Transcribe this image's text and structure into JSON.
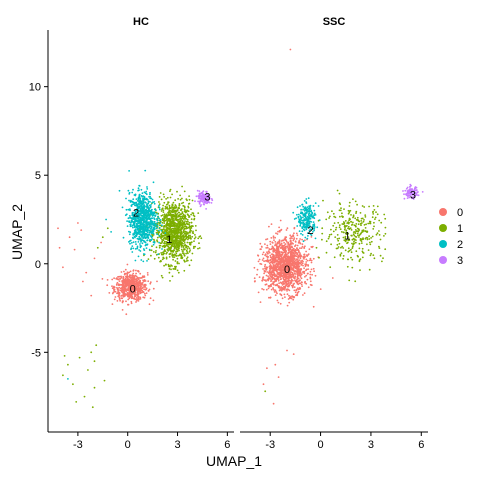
{
  "chart_data": {
    "type": "scatter",
    "xlabel": "UMAP_1",
    "ylabel": "UMAP_2",
    "xlim": [
      -4.8,
      6.4
    ],
    "ylim": [
      -9.5,
      13.2
    ],
    "x_ticks": [
      -3,
      0,
      3,
      6
    ],
    "y_ticks": [
      -5,
      0,
      5,
      10
    ],
    "grid": false,
    "legend_position": "right",
    "series": [
      {
        "name": "0",
        "color": "#F8766D"
      },
      {
        "name": "1",
        "color": "#7CAE00"
      },
      {
        "name": "2",
        "color": "#00BFC4"
      },
      {
        "name": "3",
        "color": "#C77CFF"
      }
    ],
    "facets": [
      {
        "title": "HC",
        "clusters": [
          {
            "cluster": "0",
            "center": [
              0.2,
              -1.3
            ],
            "spread": [
              0.9,
              0.7
            ],
            "count": 650,
            "label_pos": [
              0.3,
              -1.4
            ]
          },
          {
            "cluster": "1",
            "center": [
              2.8,
              1.8
            ],
            "spread": [
              1.0,
              1.6
            ],
            "count": 1100,
            "label_pos": [
              2.5,
              1.4
            ]
          },
          {
            "cluster": "2",
            "center": [
              0.9,
              2.5
            ],
            "spread": [
              0.75,
              1.4
            ],
            "count": 850,
            "label_pos": [
              0.5,
              2.9
            ]
          },
          {
            "cluster": "3",
            "center": [
              4.6,
              3.7
            ],
            "spread": [
              0.35,
              0.35
            ],
            "count": 140,
            "label_pos": [
              4.8,
              3.8
            ]
          }
        ],
        "outliers": [
          {
            "cluster": "0",
            "points": [
              [
                -3.5,
                1.5
              ],
              [
                -3.2,
                0.8
              ],
              [
                -2.8,
                1.9
              ],
              [
                -2.5,
                -0.5
              ],
              [
                -2.0,
                0.3
              ],
              [
                -3.9,
                -0.2
              ],
              [
                -4.1,
                0.9
              ],
              [
                -2.2,
                -1.8
              ],
              [
                -1.6,
                1.2
              ],
              [
                -3.0,
                2.3
              ],
              [
                -2.7,
                -1.0
              ],
              [
                -4.2,
                2.0
              ]
            ]
          },
          {
            "cluster": "1",
            "points": [
              [
                -2.2,
                -5.0
              ],
              [
                -2.0,
                -5.5
              ],
              [
                -2.4,
                -6.0
              ],
              [
                -3.6,
                -5.7
              ],
              [
                -3.9,
                -6.3
              ],
              [
                -3.3,
                -6.8
              ],
              [
                -2.6,
                -7.5
              ],
              [
                -2.1,
                -8.1
              ],
              [
                -3.1,
                -7.8
              ],
              [
                -1.4,
                -6.6
              ],
              [
                -1.9,
                -4.6
              ],
              [
                -3.8,
                -5.2
              ],
              [
                -2.9,
                -5.3
              ],
              [
                -2.0,
                -7.0
              ],
              [
                -1.5,
                1.5
              ],
              [
                -1.8,
                0.9
              ],
              [
                -1.2,
                2.0
              ]
            ]
          },
          {
            "cluster": "2",
            "points": [
              [
                -3.6,
                -6.5
              ],
              [
                -1.3,
                2.5
              ],
              [
                -1.0,
                1.8
              ]
            ]
          }
        ]
      },
      {
        "title": "SSC",
        "clusters": [
          {
            "cluster": "0",
            "center": [
              -2.1,
              -0.1
            ],
            "spread": [
              1.2,
              1.4
            ],
            "count": 1400,
            "label_pos": [
              -2.0,
              -0.3
            ]
          },
          {
            "cluster": "1",
            "center": [
              2.0,
              1.8
            ],
            "spread": [
              1.6,
              1.5
            ],
            "count": 300,
            "label_pos": [
              1.6,
              1.6
            ]
          },
          {
            "cluster": "2",
            "center": [
              -0.8,
              2.5
            ],
            "spread": [
              0.5,
              0.8
            ],
            "count": 230,
            "label_pos": [
              -0.6,
              1.9
            ]
          },
          {
            "cluster": "3",
            "center": [
              5.4,
              4.0
            ],
            "spread": [
              0.35,
              0.3
            ],
            "count": 110,
            "label_pos": [
              5.5,
              3.9
            ]
          }
        ],
        "outliers": [
          {
            "cluster": "0",
            "points": [
              [
                -1.8,
                12.1
              ],
              [
                -2.0,
                -4.9
              ],
              [
                -1.6,
                -5.1
              ],
              [
                -2.7,
                -5.7
              ],
              [
                -3.2,
                -5.9
              ],
              [
                -2.5,
                -6.4
              ],
              [
                -2.8,
                -7.9
              ],
              [
                -3.4,
                -6.8
              ]
            ]
          },
          {
            "cluster": "1",
            "points": [
              [
                -3.3,
                -7.2
              ]
            ]
          }
        ]
      }
    ]
  }
}
